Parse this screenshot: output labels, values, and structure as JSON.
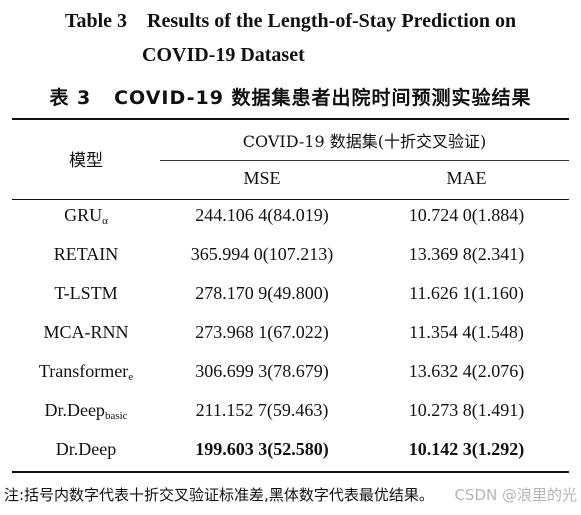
{
  "title": {
    "en_line1": "Table 3    Results of the Length-of-Stay Prediction on",
    "en_line2": "COVID-19 Dataset",
    "cn": "表 3   COVID-19 数据集患者出院时间预测实验结果"
  },
  "table": {
    "header": {
      "model": "模型",
      "group": "COVID-19 数据集(十折交叉验证)",
      "mse": "MSE",
      "mae": "MAE"
    },
    "rows": [
      {
        "model": "GRU",
        "model_sub": "α",
        "mse": "244.106 4(84.019)",
        "mae": "10.724 0(1.884)"
      },
      {
        "model": "RETAIN",
        "model_sub": "",
        "mse": "365.994 0(107.213)",
        "mae": "13.369 8(2.341)"
      },
      {
        "model": "T-LSTM",
        "model_sub": "",
        "mse": "278.170 9(49.800)",
        "mae": "11.626 1(1.160)"
      },
      {
        "model": "MCA-RNN",
        "model_sub": "",
        "mse": "273.968 1(67.022)",
        "mae": "11.354 4(1.548)"
      },
      {
        "model": "Transformer",
        "model_sub": "e",
        "mse": "306.699 3(78.679)",
        "mae": "13.632 4(2.076)"
      },
      {
        "model": "Dr.Deep",
        "model_sub": "basic",
        "mse": "211.152 7(59.463)",
        "mae": "10.273 8(1.491)"
      },
      {
        "model": "Dr.Deep",
        "model_sub": "",
        "mse": "199.603 3(52.580)",
        "mae": "10.142 3(1.292)"
      }
    ]
  },
  "note": "注:括号内数字代表十折交叉验证标准差,黑体数字代表最优结果。",
  "watermark": "CSDN @浪里的光"
}
